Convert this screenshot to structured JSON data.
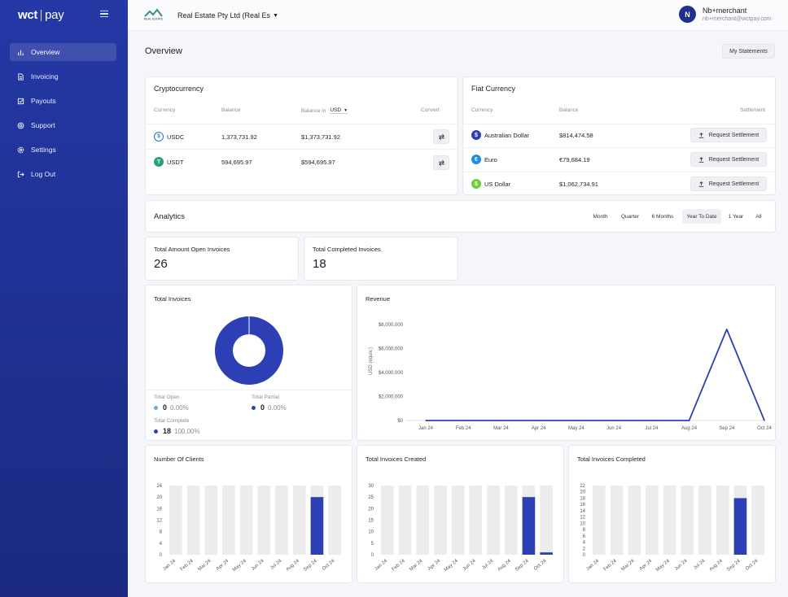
{
  "brand": {
    "logo_left": "wct",
    "logo_right": "pay"
  },
  "colors": {
    "sidebar": "#1e2f8f",
    "accent": "#2d3fb5",
    "usdc": "#2775ca",
    "usdt": "#26a17b",
    "aud": "#2d3fb5",
    "eur": "#1f8de8",
    "usd": "#6ccf3a"
  },
  "nav": [
    {
      "label": "Overview",
      "icon": "bar-chart-icon",
      "active": true
    },
    {
      "label": "Invoicing",
      "icon": "document-icon"
    },
    {
      "label": "Payouts",
      "icon": "checkbox-icon"
    },
    {
      "label": "Support",
      "icon": "lifebuoy-icon"
    },
    {
      "label": "Settings",
      "icon": "gear-icon"
    },
    {
      "label": "Log Out",
      "icon": "logout-icon"
    }
  ],
  "header": {
    "company": "Real Estate Pty Ltd (Real Es",
    "user_name": "Nb+merchant",
    "user_email": "nb+merchant@wctpay.com",
    "avatar": "N",
    "logo_text": "REAL ESTATE"
  },
  "page": {
    "title": "Overview",
    "statements_button": "My Statements"
  },
  "crypto": {
    "title": "Cryptocurrency",
    "col_currency": "Currency",
    "col_balance": "Balance",
    "col_balance_in": "Balance in",
    "currency_select": "USD",
    "col_convert": "Convert",
    "rows": [
      {
        "name": "USDC",
        "symbol": "$",
        "balance": "1,373,731.92",
        "converted": "$1,373,731.92"
      },
      {
        "name": "USDT",
        "symbol": "T",
        "balance": "594,695.97",
        "converted": "$594,695.97"
      }
    ]
  },
  "fiat": {
    "title": "Fiat Currency",
    "col_currency": "Currency",
    "col_balance": "Balance",
    "col_settlement": "Settlement",
    "button_label": "Request Settlement",
    "rows": [
      {
        "name": "Australian Dollar",
        "symbol": "$",
        "balance": "$814,474.58"
      },
      {
        "name": "Euro",
        "symbol": "€",
        "balance": "€79,684.19"
      },
      {
        "name": "US Dollar",
        "symbol": "$",
        "balance": "$1,062,734.91"
      }
    ]
  },
  "analytics": {
    "title": "Analytics",
    "ranges": [
      "Month",
      "Quarter",
      "6 Months",
      "Year To Date",
      "1 Year",
      "All"
    ],
    "active_range": "Year To Date"
  },
  "stats": {
    "open_label": "Total Amount Open Invoices",
    "open_value": "26",
    "completed_label": "Total Completed Invoices",
    "completed_value": "18"
  },
  "total_invoices": {
    "title": "Total Invoices",
    "open_label": "Total Open",
    "open_value": "0",
    "open_pct": "0.00%",
    "partial_label": "Total Partial",
    "partial_value": "0",
    "partial_pct": "0.00%",
    "complete_label": "Total Complete",
    "complete_value": "18",
    "complete_pct": "100.00%"
  },
  "chart_data": [
    {
      "type": "pie",
      "title": "Total Invoices",
      "labels": [
        "Total Open",
        "Total Partial",
        "Total Complete"
      ],
      "values": [
        0,
        0,
        18
      ],
      "colors": [
        "#6aa8e8",
        "#2d3fb5",
        "#2d3fb5"
      ]
    },
    {
      "type": "line",
      "title": "Revenue",
      "ylabel": "USD (equiv.)",
      "categories": [
        "Jan 24",
        "Feb 24",
        "Mar 24",
        "Apr 24",
        "May 24",
        "Jun 24",
        "Jul 24",
        "Aug 24",
        "Sep 24",
        "Oct 24"
      ],
      "values": [
        0,
        0,
        0,
        0,
        0,
        0,
        0,
        0,
        7600000,
        0
      ],
      "yticks": [
        "$0",
        "$2,000,000",
        "$4,000,000",
        "$6,000,000",
        "$8,000,000"
      ],
      "ylim": [
        0,
        8000000
      ],
      "grid": false
    },
    {
      "type": "bar",
      "title": "Number Of Clients",
      "categories": [
        "Jan 24",
        "Feb 24",
        "Mar 24",
        "Apr 24",
        "May 24",
        "Jun 24",
        "Jul 24",
        "Aug 24",
        "Sep 24",
        "Oct 24"
      ],
      "values": [
        0,
        0,
        0,
        0,
        0,
        0,
        0,
        0,
        20,
        0
      ],
      "ylim": [
        0,
        24
      ],
      "yticks": [
        "0",
        "4",
        "8",
        "12",
        "16",
        "20",
        "24"
      ]
    },
    {
      "type": "bar",
      "title": "Total Invoices Created",
      "categories": [
        "Jan 24",
        "Feb 24",
        "Mar 24",
        "Apr 24",
        "May 24",
        "Jun 24",
        "Jul 24",
        "Aug 24",
        "Sep 24",
        "Oct 24"
      ],
      "values": [
        0,
        0,
        0,
        0,
        0,
        0,
        0,
        0,
        25,
        1
      ],
      "ylim": [
        0,
        30
      ],
      "yticks": [
        "0",
        "5",
        "10",
        "15",
        "20",
        "25",
        "30"
      ]
    },
    {
      "type": "bar",
      "title": "Total Invoices Completed",
      "categories": [
        "Jan 24",
        "Feb 24",
        "Mar 24",
        "Apr 24",
        "May 24",
        "Jun 24",
        "Jul 24",
        "Aug 24",
        "Sep 24",
        "Oct 24"
      ],
      "values": [
        0,
        0,
        0,
        0,
        0,
        0,
        0,
        0,
        18,
        0
      ],
      "ylim": [
        0,
        22
      ],
      "yticks": [
        "0",
        "2",
        "4",
        "6",
        "8",
        "10",
        "12",
        "14",
        "16",
        "18",
        "20",
        "22"
      ]
    }
  ]
}
